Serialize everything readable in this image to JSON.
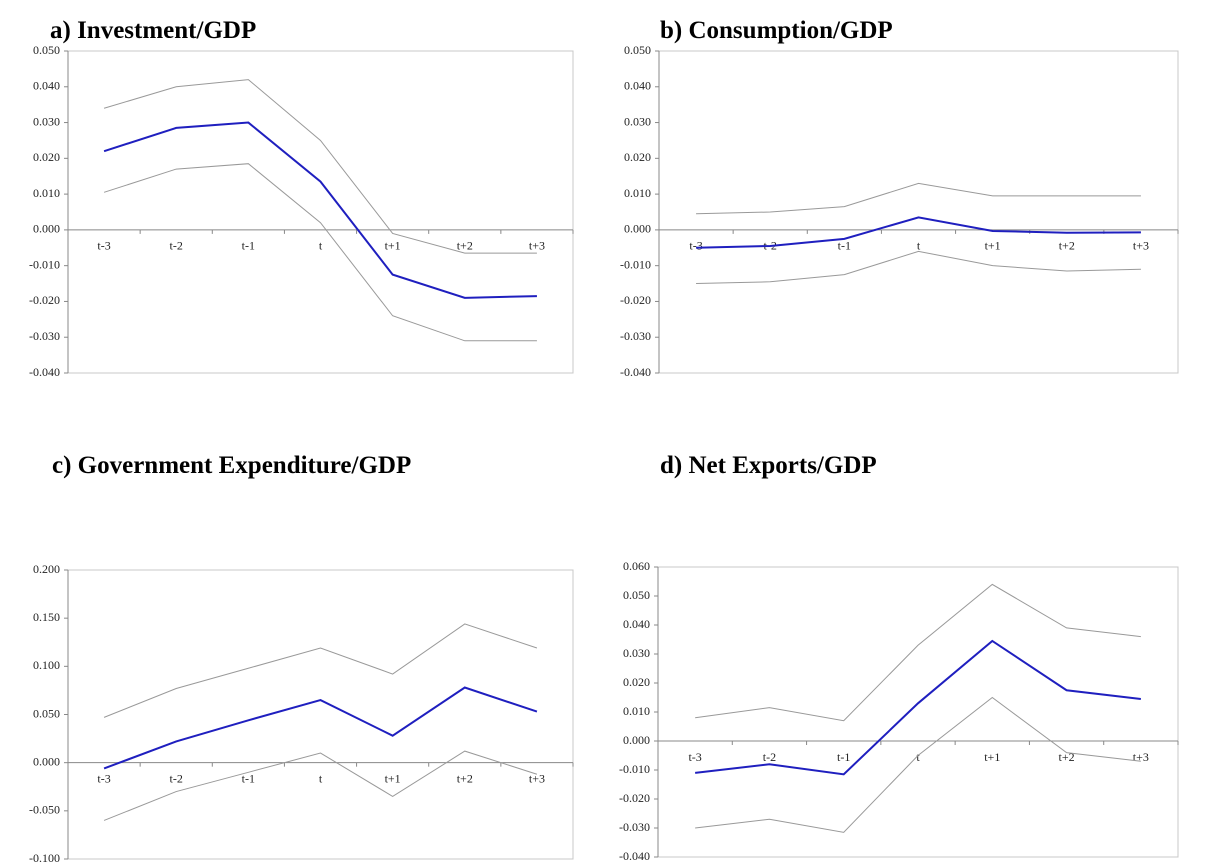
{
  "chart_data": [
    {
      "type": "line",
      "title": "a) Investment/GDP",
      "categories": [
        "t-3",
        "t-2",
        "t-1",
        "t",
        "t+1",
        "t+2",
        "t+3"
      ],
      "series": [
        {
          "color": "#999999",
          "values": [
            0.034,
            0.04,
            0.042,
            0.025,
            -0.001,
            -0.0065,
            -0.0065
          ]
        },
        {
          "color": "#1f1fbf",
          "values": [
            0.022,
            0.0285,
            0.03,
            0.0135,
            -0.0125,
            -0.019,
            -0.0185
          ]
        },
        {
          "color": "#999999",
          "values": [
            0.0105,
            0.017,
            0.0185,
            0.002,
            -0.024,
            -0.031,
            -0.031
          ]
        }
      ],
      "ylim": [
        -0.04,
        0.05
      ],
      "yticks": [
        {
          "value": -0.04,
          "label": "-0.040"
        },
        {
          "value": -0.03,
          "label": "-0.030"
        },
        {
          "value": -0.02,
          "label": "-0.020"
        },
        {
          "value": -0.01,
          "label": "-0.010"
        },
        {
          "value": 0,
          "label": "0.000"
        },
        {
          "value": 0.01,
          "label": "0.010"
        },
        {
          "value": 0.02,
          "label": "0.020"
        },
        {
          "value": 0.03,
          "label": "0.030"
        },
        {
          "value": 0.04,
          "label": "0.040"
        },
        {
          "value": 0.05,
          "label": "0.050"
        }
      ]
    },
    {
      "type": "line",
      "title": "b) Consumption/GDP",
      "categories": [
        "t-3",
        "t-2",
        "t-1",
        "t",
        "t+1",
        "t+2",
        "t+3"
      ],
      "series": [
        {
          "color": "#999999",
          "values": [
            0.0045,
            0.005,
            0.0065,
            0.013,
            0.0095,
            0.0095,
            0.0095
          ]
        },
        {
          "color": "#1f1fbf",
          "values": [
            -0.005,
            -0.0045,
            -0.0025,
            0.0035,
            -0.0003,
            -0.0008,
            -0.0007
          ]
        },
        {
          "color": "#999999",
          "values": [
            -0.015,
            -0.0145,
            -0.0125,
            -0.006,
            -0.01,
            -0.0115,
            -0.011
          ]
        }
      ],
      "ylim": [
        -0.04,
        0.05
      ],
      "yticks": [
        {
          "value": -0.04,
          "label": "-0.040"
        },
        {
          "value": -0.03,
          "label": "-0.030"
        },
        {
          "value": -0.02,
          "label": "-0.020"
        },
        {
          "value": -0.01,
          "label": "-0.010"
        },
        {
          "value": 0,
          "label": "0.000"
        },
        {
          "value": 0.01,
          "label": "0.010"
        },
        {
          "value": 0.02,
          "label": "0.020"
        },
        {
          "value": 0.03,
          "label": "0.030"
        },
        {
          "value": 0.04,
          "label": "0.040"
        },
        {
          "value": 0.05,
          "label": "0.050"
        }
      ]
    },
    {
      "type": "line",
      "title": "c) Government Expenditure/GDP",
      "categories": [
        "t-3",
        "t-2",
        "t-1",
        "t",
        "t+1",
        "t+2",
        "t+3"
      ],
      "series": [
        {
          "color": "#999999",
          "values": [
            0.047,
            0.077,
            0.098,
            0.119,
            0.092,
            0.144,
            0.119
          ]
        },
        {
          "color": "#1f1fbf",
          "values": [
            -0.006,
            0.022,
            0.044,
            0.065,
            0.028,
            0.078,
            0.053
          ]
        },
        {
          "color": "#999999",
          "values": [
            -0.06,
            -0.03,
            -0.01,
            0.01,
            -0.035,
            0.012,
            -0.012
          ]
        }
      ],
      "ylim": [
        -0.1,
        0.2
      ],
      "yticks": [
        {
          "value": -0.1,
          "label": "-0.100"
        },
        {
          "value": -0.05,
          "label": "-0.050"
        },
        {
          "value": 0,
          "label": "0.000"
        },
        {
          "value": 0.05,
          "label": "0.050"
        },
        {
          "value": 0.1,
          "label": "0.100"
        },
        {
          "value": 0.15,
          "label": "0.150"
        },
        {
          "value": 0.2,
          "label": "0.200"
        }
      ]
    },
    {
      "type": "line",
      "title": "d) Net Exports/GDP",
      "categories": [
        "t-3",
        "t-2",
        "t-1",
        "t",
        "t+1",
        "t+2",
        "t+3"
      ],
      "series": [
        {
          "color": "#999999",
          "values": [
            0.008,
            0.0115,
            0.007,
            0.033,
            0.054,
            0.039,
            0.036
          ]
        },
        {
          "color": "#1f1fbf",
          "values": [
            -0.011,
            -0.008,
            -0.0115,
            0.013,
            0.0345,
            0.0175,
            0.0145
          ]
        },
        {
          "color": "#999999",
          "values": [
            -0.03,
            -0.027,
            -0.0315,
            -0.005,
            0.015,
            -0.004,
            -0.007
          ]
        }
      ],
      "ylim": [
        -0.04,
        0.06
      ],
      "yticks": [
        {
          "value": -0.04,
          "label": "-0.040"
        },
        {
          "value": -0.03,
          "label": "-0.030"
        },
        {
          "value": -0.02,
          "label": "-0.020"
        },
        {
          "value": -0.01,
          "label": "-0.010"
        },
        {
          "value": 0,
          "label": "0.000"
        },
        {
          "value": 0.01,
          "label": "0.010"
        },
        {
          "value": 0.02,
          "label": "0.020"
        },
        {
          "value": 0.03,
          "label": "0.030"
        },
        {
          "value": 0.04,
          "label": "0.040"
        },
        {
          "value": 0.05,
          "label": "0.050"
        },
        {
          "value": 0.06,
          "label": "0.060"
        }
      ]
    }
  ]
}
